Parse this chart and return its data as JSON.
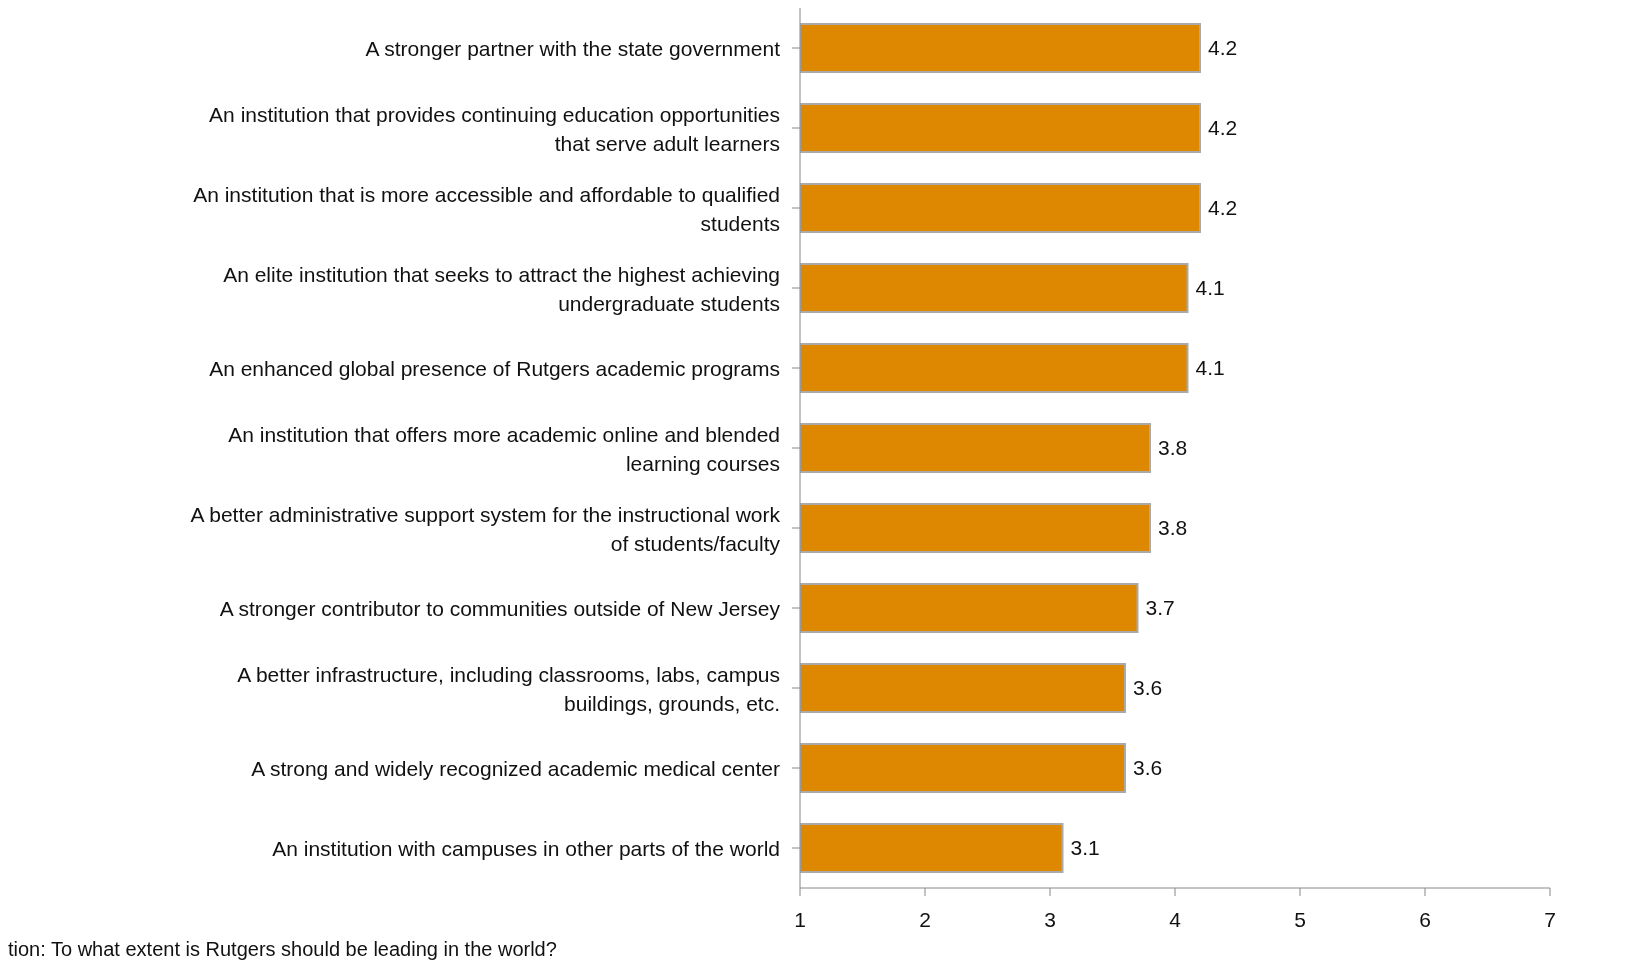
{
  "chart_data": {
    "type": "bar",
    "orientation": "horizontal",
    "categories": [
      "A stronger partner with the state government",
      "An institution that provides continuing education opportunities that serve adult learners",
      "An institution that is more accessible and affordable to qualified students",
      "An elite institution that seeks to attract the highest achieving undergraduate students",
      "An enhanced global presence of Rutgers academic programs",
      "An institution that offers more academic online and blended learning courses",
      "A better administrative support system for the instructional work of students/faculty",
      "A stronger contributor to communities outside of New Jersey",
      "A better infrastructure, including classrooms, labs, campus buildings, grounds, etc.",
      "A strong and widely recognized academic medical center",
      "An institution with campuses in other parts of the world"
    ],
    "values": [
      4.2,
      4.2,
      4.2,
      4.1,
      4.1,
      3.8,
      3.8,
      3.7,
      3.6,
      3.6,
      3.1
    ],
    "color": "#dd8800",
    "xlim": [
      1,
      7
    ],
    "xticks": [
      1,
      2,
      3,
      4,
      5,
      6,
      7
    ],
    "data_labels": true,
    "annotations": [
      "tion: To what extent is Rutgers should be leading in the world?"
    ]
  }
}
